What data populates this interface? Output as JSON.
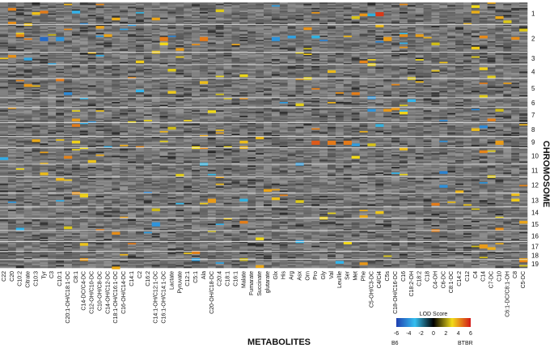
{
  "chart_data": {
    "type": "heatmap",
    "xlabel": "METABOLITES",
    "ylabel": "CHROMOSOME",
    "metabolites": [
      "C22",
      "C20",
      "C10:2",
      "Citrate",
      "C10:3",
      "Tyr",
      "C3",
      "C10:1",
      "C20:1-OH/C18:1-DC",
      "C8:1",
      "C14-DC/C4-DC",
      "C12-OH/C10-DC",
      "C10-OH/C8-DC",
      "C14-OH/C12-DC",
      "C18:1-OH/C16:1-DC",
      "C16-OH/C14-DC",
      "C14:1",
      "C2",
      "C16:2",
      "C14:1-OH/C12:1-DC",
      "C16:1-OH/C14:1-DC",
      "Lactate",
      "Pyruvate",
      "C12:1",
      "C5:1",
      "Ala",
      "C20-OH/C18-DC",
      "C20:4",
      "C18:1",
      "C16:1",
      "Malate",
      "Fumarate",
      "Succinate",
      "glutarate",
      "Glx",
      "His",
      "Arg",
      "Asx",
      "Orn",
      "Pro",
      "Gly",
      "Val",
      "Leu/Ile",
      "Ser",
      "Met",
      "Phe",
      "C5-OH/C3-DC",
      "C4/Ci4",
      "C5s",
      "C18-OH/C16-DC",
      "C16",
      "C18:2-OH",
      "C18:2",
      "C18",
      "C4-OH",
      "C6-DC",
      "C8:1-DC",
      "C14:2",
      "C12",
      "C4",
      "C14",
      "C7-DC",
      "C10",
      "C6:1-DC/C8:1-OH",
      "C8",
      "C5-DC"
    ],
    "chromosomes": [
      "1",
      "2",
      "3",
      "4",
      "5",
      "6",
      "7",
      "8",
      "9",
      "10",
      "11",
      "12",
      "13",
      "14",
      "15",
      "16",
      "17",
      "18",
      "19"
    ],
    "rows_per_chromosome": [
      16,
      20,
      9,
      10,
      14,
      7,
      11,
      10,
      8,
      12,
      9,
      12,
      10,
      8,
      9,
      8,
      7,
      6,
      6
    ],
    "legend": {
      "title": "LOD Score",
      "ticks": [
        -6,
        -4,
        -2,
        0,
        2,
        4,
        6
      ],
      "low_label": "B6",
      "high_label": "BTBR",
      "range": [
        -6,
        6
      ],
      "colors": {
        "neg_max": "#1f3fb0",
        "neg_mid": "#35bff0",
        "zero": "#000000",
        "pos_mid": "#f2dc1a",
        "pos_max": "#d31818",
        "background": "#7a7a7a"
      }
    },
    "notable_hits": [
      {
        "metabolite": "C16:1-OH/C14:1-DC",
        "chromosome": "2",
        "lod": 4.5
      },
      {
        "metabolite": "Tyr",
        "chromosome": "2",
        "lod": -5
      },
      {
        "metabolite": "C10:1",
        "chromosome": "2",
        "lod": -4
      },
      {
        "metabolite": "Ala",
        "chromosome": "2",
        "lod": 4.5
      },
      {
        "metabolite": "C4/Ci4",
        "chromosome": "1",
        "lod": 5.5
      },
      {
        "metabolite": "C5s",
        "chromosome": "2",
        "lod": 4
      },
      {
        "metabolite": "Glx",
        "chromosome": "2",
        "lod": -4
      },
      {
        "metabolite": "Pro",
        "chromosome": "9",
        "lod": 5
      },
      {
        "metabolite": "Val",
        "chromosome": "9",
        "lod": 4.5
      },
      {
        "metabolite": "Ser",
        "chromosome": "9",
        "lod": 4.5
      },
      {
        "metabolite": "C10",
        "chromosome": "9",
        "lod": 4
      },
      {
        "metabolite": "C20-OH/C18-DC",
        "chromosome": "13",
        "lod": 4
      },
      {
        "metabolite": "C14",
        "chromosome": "17",
        "lod": 4
      },
      {
        "metabolite": "C14:1-OH/C12:1-DC",
        "chromosome": "15",
        "lod": -4
      }
    ]
  }
}
